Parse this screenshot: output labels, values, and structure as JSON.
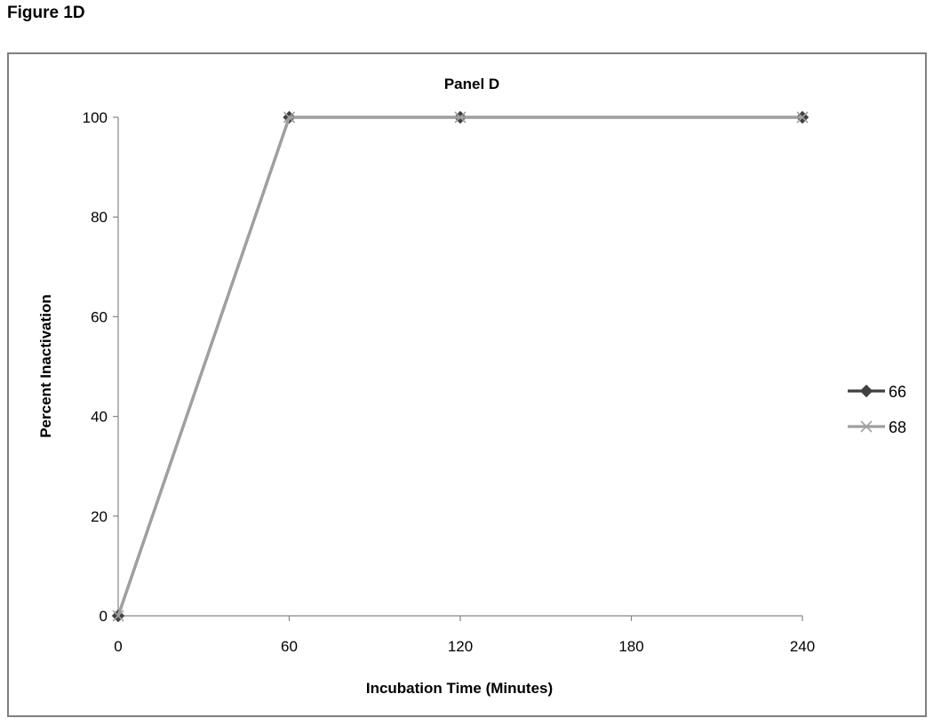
{
  "figure": {
    "heading": "Figure 1D"
  },
  "chart_data": {
    "type": "line",
    "title": "Panel D",
    "xlabel": "Incubation Time (Minutes)",
    "ylabel": "Percent Inactivation",
    "x": [
      0,
      60,
      120,
      240
    ],
    "xticks": [
      0,
      60,
      120,
      180,
      240
    ],
    "yticks": [
      0,
      20,
      40,
      60,
      80,
      100
    ],
    "xlim": [
      0,
      240
    ],
    "ylim": [
      0,
      100
    ],
    "grid": false,
    "legend_position": "right",
    "series": [
      {
        "name": "66",
        "values": [
          0,
          100,
          100,
          100
        ],
        "color": "#404040",
        "marker": "diamond"
      },
      {
        "name": "68",
        "values": [
          0,
          100,
          100,
          100
        ],
        "color": "#a0a0a0",
        "marker": "x"
      }
    ]
  }
}
